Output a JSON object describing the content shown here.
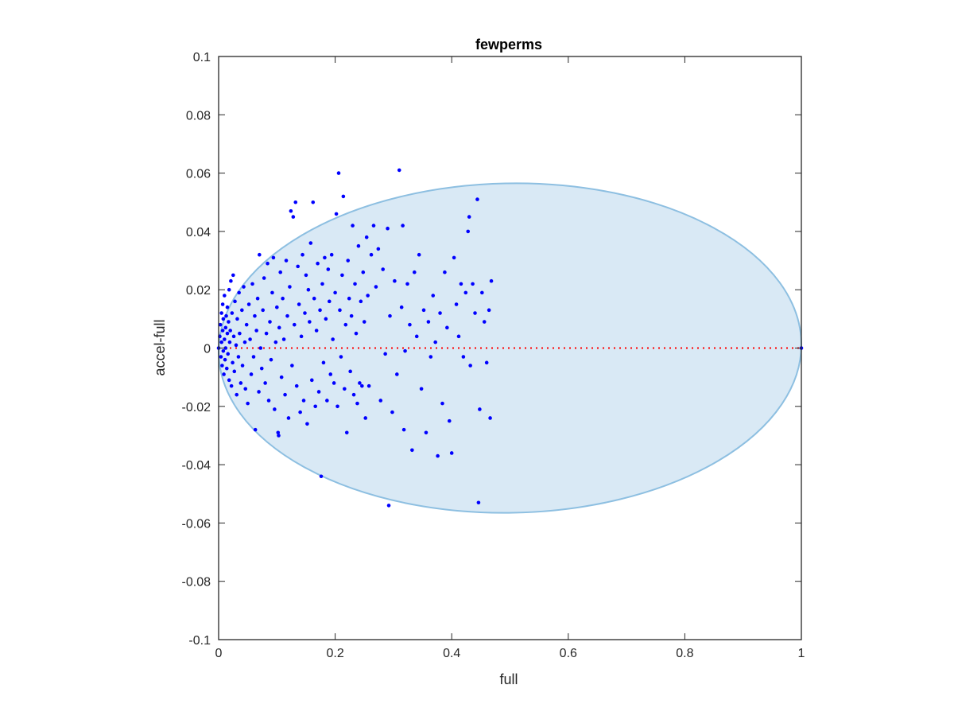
{
  "chart_data": {
    "type": "scatter",
    "title": "fewperms",
    "xlabel": "full",
    "ylabel": "accel-full",
    "xlim": [
      0,
      1
    ],
    "ylim": [
      -0.1,
      0.1
    ],
    "xticks": [
      "0",
      "0.2",
      "0.4",
      "0.6",
      "0.8",
      "1"
    ],
    "yticks": [
      "-0.1",
      "-0.08",
      "-0.06",
      "-0.04",
      "-0.02",
      "0",
      "0.02",
      "0.04",
      "0.06",
      "0.08",
      "0.1"
    ],
    "grid": false,
    "colors": {
      "points": "#0000ff",
      "ellipse_fill": "#d9e9f5",
      "ellipse_stroke": "#8dbfe1",
      "reference_line": "#ff0000",
      "axes": "#262626"
    },
    "ellipse": {
      "cx": 0.5,
      "cy": 0.0,
      "rx": 0.5,
      "ry": 0.0565,
      "rotation_deg": -1.0
    },
    "reference_line": {
      "y": 0,
      "x_range": [
        0,
        1
      ],
      "style": "dotted"
    },
    "points": [
      [
        0.0,
        0.0
      ],
      [
        0.002,
        0.004
      ],
      [
        0.003,
        0.008
      ],
      [
        0.004,
        -0.003
      ],
      [
        0.005,
        0.012
      ],
      [
        0.005,
        0.002
      ],
      [
        0.006,
        -0.006
      ],
      [
        0.007,
        0.015
      ],
      [
        0.007,
        0.006
      ],
      [
        0.008,
        -0.001
      ],
      [
        0.008,
        0.01
      ],
      [
        0.009,
        -0.009
      ],
      [
        0.01,
        0.003
      ],
      [
        0.01,
        0.018
      ],
      [
        0.011,
        -0.004
      ],
      [
        0.012,
        0.007
      ],
      [
        0.012,
        0.0
      ],
      [
        0.013,
        0.011
      ],
      [
        0.014,
        -0.007
      ],
      [
        0.015,
        0.005
      ],
      [
        0.015,
        0.014
      ],
      [
        0.016,
        -0.002
      ],
      [
        0.017,
        0.009
      ],
      [
        0.018,
        0.02
      ],
      [
        0.018,
        -0.011
      ],
      [
        0.019,
        0.002
      ],
      [
        0.02,
        0.006
      ],
      [
        0.021,
        0.023
      ],
      [
        0.022,
        -0.013
      ],
      [
        0.023,
        0.012
      ],
      [
        0.024,
        -0.005
      ],
      [
        0.025,
        0.025
      ],
      [
        0.026,
        0.004
      ],
      [
        0.027,
        -0.008
      ],
      [
        0.028,
        0.016
      ],
      [
        0.03,
        0.001
      ],
      [
        0.031,
        -0.016
      ],
      [
        0.032,
        0.01
      ],
      [
        0.034,
        -0.003
      ],
      [
        0.035,
        0.019
      ],
      [
        0.036,
        0.005
      ],
      [
        0.038,
        -0.012
      ],
      [
        0.04,
        0.013
      ],
      [
        0.041,
        -0.006
      ],
      [
        0.043,
        0.021
      ],
      [
        0.045,
        0.002
      ],
      [
        0.046,
        -0.014
      ],
      [
        0.048,
        0.008
      ],
      [
        0.05,
        -0.019
      ],
      [
        0.052,
        0.015
      ],
      [
        0.054,
        0.003
      ],
      [
        0.056,
        -0.009
      ],
      [
        0.058,
        0.022
      ],
      [
        0.06,
        -0.003
      ],
      [
        0.062,
        0.011
      ],
      [
        0.063,
        -0.028
      ],
      [
        0.065,
        0.006
      ],
      [
        0.067,
        0.017
      ],
      [
        0.069,
        -0.015
      ],
      [
        0.07,
        0.032
      ],
      [
        0.072,
        0.0
      ],
      [
        0.074,
        -0.007
      ],
      [
        0.076,
        0.013
      ],
      [
        0.078,
        0.024
      ],
      [
        0.08,
        -0.012
      ],
      [
        0.082,
        0.005
      ],
      [
        0.084,
        0.029
      ],
      [
        0.086,
        -0.018
      ],
      [
        0.088,
        0.009
      ],
      [
        0.09,
        -0.004
      ],
      [
        0.092,
        0.019
      ],
      [
        0.094,
        0.031
      ],
      [
        0.096,
        -0.021
      ],
      [
        0.098,
        0.002
      ],
      [
        0.1,
        0.014
      ],
      [
        0.102,
        -0.029
      ],
      [
        0.103,
        -0.03
      ],
      [
        0.104,
        0.007
      ],
      [
        0.106,
        0.026
      ],
      [
        0.108,
        -0.01
      ],
      [
        0.11,
        0.017
      ],
      [
        0.112,
        0.003
      ],
      [
        0.114,
        -0.016
      ],
      [
        0.116,
        0.03
      ],
      [
        0.118,
        0.011
      ],
      [
        0.12,
        -0.024
      ],
      [
        0.122,
        0.021
      ],
      [
        0.124,
        0.047
      ],
      [
        0.126,
        -0.006
      ],
      [
        0.128,
        0.045
      ],
      [
        0.13,
        0.008
      ],
      [
        0.132,
        0.05
      ],
      [
        0.134,
        -0.013
      ],
      [
        0.136,
        0.028
      ],
      [
        0.138,
        0.015
      ],
      [
        0.14,
        -0.022
      ],
      [
        0.142,
        0.004
      ],
      [
        0.144,
        0.032
      ],
      [
        0.146,
        -0.018
      ],
      [
        0.148,
        0.012
      ],
      [
        0.15,
        0.025
      ],
      [
        0.152,
        -0.026
      ],
      [
        0.154,
        0.02
      ],
      [
        0.156,
        0.009
      ],
      [
        0.158,
        0.036
      ],
      [
        0.16,
        -0.011
      ],
      [
        0.162,
        0.05
      ],
      [
        0.164,
        0.017
      ],
      [
        0.166,
        -0.02
      ],
      [
        0.168,
        0.006
      ],
      [
        0.17,
        0.029
      ],
      [
        0.172,
        -0.015
      ],
      [
        0.174,
        0.013
      ],
      [
        0.176,
        -0.044
      ],
      [
        0.178,
        0.022
      ],
      [
        0.18,
        -0.005
      ],
      [
        0.182,
        0.031
      ],
      [
        0.184,
        0.01
      ],
      [
        0.186,
        -0.018
      ],
      [
        0.188,
        0.027
      ],
      [
        0.19,
        0.016
      ],
      [
        0.192,
        -0.009
      ],
      [
        0.194,
        0.032
      ],
      [
        0.196,
        0.003
      ],
      [
        0.198,
        -0.012
      ],
      [
        0.2,
        0.019
      ],
      [
        0.202,
        0.046
      ],
      [
        0.204,
        -0.02
      ],
      [
        0.206,
        0.06
      ],
      [
        0.208,
        0.013
      ],
      [
        0.21,
        -0.003
      ],
      [
        0.212,
        0.025
      ],
      [
        0.214,
        0.052
      ],
      [
        0.216,
        -0.014
      ],
      [
        0.218,
        0.008
      ],
      [
        0.22,
        -0.029
      ],
      [
        0.222,
        0.03
      ],
      [
        0.224,
        0.017
      ],
      [
        0.226,
        -0.008
      ],
      [
        0.228,
        0.011
      ],
      [
        0.23,
        0.042
      ],
      [
        0.232,
        -0.016
      ],
      [
        0.234,
        0.022
      ],
      [
        0.236,
        0.005
      ],
      [
        0.238,
        -0.019
      ],
      [
        0.24,
        0.035
      ],
      [
        0.242,
        -0.012
      ],
      [
        0.244,
        0.016
      ],
      [
        0.246,
        -0.013
      ],
      [
        0.248,
        0.026
      ],
      [
        0.25,
        0.009
      ],
      [
        0.252,
        -0.024
      ],
      [
        0.254,
        0.038
      ],
      [
        0.256,
        0.018
      ],
      [
        0.258,
        -0.013
      ],
      [
        0.262,
        0.032
      ],
      [
        0.266,
        0.042
      ],
      [
        0.27,
        0.021
      ],
      [
        0.274,
        0.034
      ],
      [
        0.278,
        -0.018
      ],
      [
        0.282,
        0.027
      ],
      [
        0.286,
        -0.002
      ],
      [
        0.29,
        0.041
      ],
      [
        0.292,
        -0.054
      ],
      [
        0.294,
        0.011
      ],
      [
        0.298,
        -0.022
      ],
      [
        0.302,
        0.023
      ],
      [
        0.306,
        -0.009
      ],
      [
        0.31,
        0.061
      ],
      [
        0.314,
        0.014
      ],
      [
        0.316,
        0.042
      ],
      [
        0.318,
        -0.028
      ],
      [
        0.32,
        -0.001
      ],
      [
        0.324,
        0.022
      ],
      [
        0.328,
        0.008
      ],
      [
        0.332,
        -0.035
      ],
      [
        0.336,
        0.026
      ],
      [
        0.34,
        0.004
      ],
      [
        0.344,
        0.032
      ],
      [
        0.348,
        -0.014
      ],
      [
        0.352,
        0.013
      ],
      [
        0.356,
        -0.029
      ],
      [
        0.36,
        0.009
      ],
      [
        0.364,
        -0.003
      ],
      [
        0.368,
        0.018
      ],
      [
        0.372,
        0.002
      ],
      [
        0.376,
        -0.037
      ],
      [
        0.38,
        0.012
      ],
      [
        0.384,
        -0.019
      ],
      [
        0.388,
        0.026
      ],
      [
        0.392,
        0.007
      ],
      [
        0.396,
        -0.025
      ],
      [
        0.4,
        -0.036
      ],
      [
        0.404,
        0.031
      ],
      [
        0.408,
        0.015
      ],
      [
        0.412,
        0.004
      ],
      [
        0.416,
        0.022
      ],
      [
        0.42,
        -0.003
      ],
      [
        0.424,
        0.019
      ],
      [
        0.428,
        0.04
      ],
      [
        0.43,
        0.045
      ],
      [
        0.432,
        -0.006
      ],
      [
        0.436,
        0.022
      ],
      [
        0.44,
        0.012
      ],
      [
        0.444,
        0.051
      ],
      [
        0.446,
        -0.053
      ],
      [
        0.448,
        -0.021
      ],
      [
        0.452,
        0.019
      ],
      [
        0.456,
        0.009
      ],
      [
        0.46,
        -0.005
      ],
      [
        0.464,
        0.013
      ],
      [
        0.466,
        -0.024
      ],
      [
        0.468,
        0.023
      ],
      [
        1.0,
        0.0
      ]
    ]
  }
}
